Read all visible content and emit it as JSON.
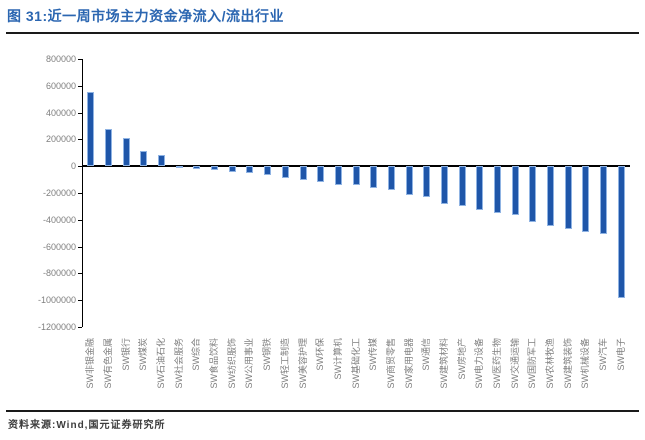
{
  "title": "图 31:近一周市场主力资金净流入/流出行业",
  "source_note": "资料来源:Wind,国元证券研究所",
  "colors": {
    "title_blue": "#2B66B1",
    "bar_fill": "#1F56A9",
    "bar_edge": "#8FB3E3",
    "axis": "#000000",
    "tick_label_gray": "#7F7F7F",
    "divider": "#1A1A1A"
  },
  "chart_data": {
    "type": "bar",
    "title": "近一周市场主力资金净流入/流出行业",
    "xlabel": "",
    "ylabel": "",
    "ylim": [
      -1200000,
      800000
    ],
    "ytick_step": 200000,
    "ytick_labels": [
      "800000",
      "600000",
      "400000",
      "200000",
      "0",
      "-200000",
      "-400000",
      "-600000",
      "-800000",
      "-1000000",
      "-1200000"
    ],
    "grid": false,
    "legend": null,
    "categories": [
      "SW非银金融",
      "SW有色金属",
      "SW银行",
      "SW煤炭",
      "SW石油石化",
      "SW社会服务",
      "SW综合",
      "SW食品饮料",
      "SW纺织服饰",
      "SW公用事业",
      "SW钢铁",
      "SW轻工制造",
      "SW美容护理",
      "SW环保",
      "SW计算机",
      "SW基础化工",
      "SW传媒",
      "SW商贸零售",
      "SW家用电器",
      "SW通信",
      "SW建筑材料",
      "SW房地产",
      "SW电力设备",
      "SW医药生物",
      "SW交通运输",
      "SW国防军工",
      "SW农林牧渔",
      "SW建筑装饰",
      "SW机械设备",
      "SW汽车",
      "SW电子"
    ],
    "values": [
      555000,
      278000,
      210000,
      112000,
      85000,
      -15000,
      -24000,
      -30000,
      -42000,
      -50000,
      -68000,
      -88000,
      -106000,
      -122000,
      -138000,
      -142000,
      -160000,
      -180000,
      -212000,
      -228000,
      -280000,
      -296000,
      -325000,
      -352000,
      -366000,
      -420000,
      -448000,
      -472000,
      -492000,
      -505000,
      -985000
    ]
  }
}
